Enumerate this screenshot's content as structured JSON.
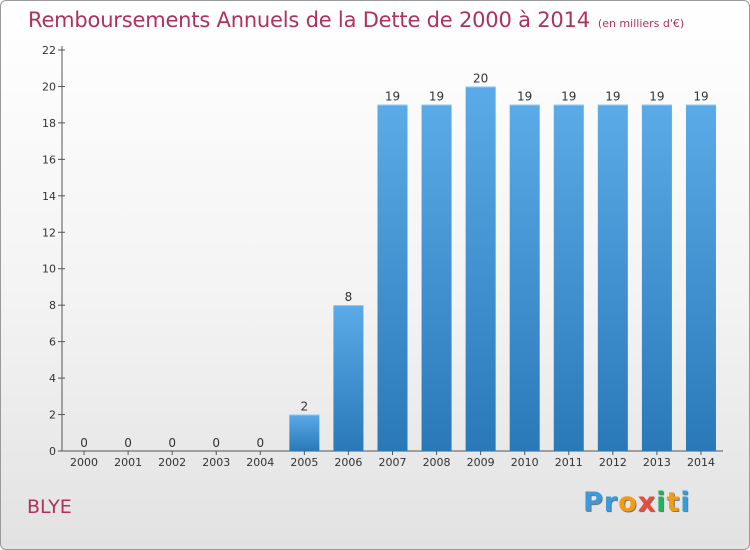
{
  "header": {
    "title": "Remboursements Annuels de la Dette de 2000 à 2014",
    "subtitle": "(en milliers d'€)"
  },
  "place_name": "BLYE",
  "brand": {
    "letters": [
      "P",
      "r",
      "o",
      "x",
      "i",
      "t",
      "i"
    ],
    "letter_colors": [
      "#3a9bd8",
      "#3a9bd8",
      "#f39c12",
      "#e74c3c",
      "#27ae60",
      "#f39c12",
      "#3a9bd8"
    ]
  },
  "chart_data": {
    "type": "bar",
    "categories": [
      "2000",
      "2001",
      "2002",
      "2003",
      "2004",
      "2005",
      "2006",
      "2007",
      "2008",
      "2009",
      "2010",
      "2011",
      "2012",
      "2013",
      "2014"
    ],
    "values": [
      0,
      0,
      0,
      0,
      0,
      2,
      8,
      19,
      19,
      20,
      19,
      19,
      19,
      19,
      19
    ],
    "ylim": [
      0,
      22
    ],
    "yticks": [
      0,
      2,
      4,
      6,
      8,
      10,
      12,
      14,
      16,
      18,
      20,
      22
    ],
    "bar_color_top": "#5aabe8",
    "bar_color_bottom": "#2a78b8",
    "grid": false
  }
}
